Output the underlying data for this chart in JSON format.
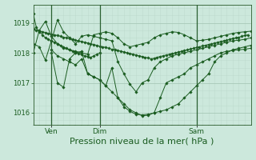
{
  "background_color": "#cce8dc",
  "grid_color_major": "#a8c8b8",
  "grid_color_minor": "#b8d8c8",
  "line_color": "#1a5c20",
  "xlabel": "Pression niveau de la mer( hPa )",
  "xlabel_fontsize": 8,
  "yticks": [
    1016,
    1017,
    1018,
    1019
  ],
  "ylim": [
    1015.6,
    1019.6
  ],
  "xtick_labels": [
    "Ven",
    "Dim",
    "Sam"
  ],
  "xtick_positions": [
    6,
    22,
    54
  ],
  "vline_positions": [
    6,
    22,
    54
  ],
  "xlim": [
    0,
    72
  ],
  "series": [
    {
      "x": [
        0,
        1,
        2,
        3,
        4,
        5,
        6,
        7,
        8,
        9,
        10,
        11,
        12,
        13,
        14,
        15,
        16,
        17,
        18,
        19,
        20,
        21,
        22
      ],
      "y": [
        1019.3,
        1018.85,
        1018.7,
        1018.6,
        1018.5,
        1018.45,
        1018.4,
        1018.35,
        1018.3,
        1018.25,
        1018.2,
        1018.15,
        1018.1,
        1018.05,
        1018.0,
        1017.98,
        1017.95,
        1017.9,
        1017.88,
        1017.85,
        1017.9,
        1017.95,
        1018.0
      ]
    },
    {
      "x": [
        0,
        1,
        2,
        3,
        4,
        5,
        6,
        7,
        8,
        9,
        10,
        11,
        12,
        13,
        14,
        15,
        16,
        17,
        18,
        19,
        20,
        21,
        22,
        23,
        24,
        25,
        26,
        27,
        28,
        29,
        30,
        31,
        32,
        33,
        34,
        35,
        36,
        37,
        38,
        39,
        40,
        41,
        42,
        43,
        44,
        45,
        46,
        47,
        48,
        49,
        50,
        51,
        52,
        53,
        54,
        55,
        56,
        57,
        58,
        59,
        60,
        61,
        62,
        63,
        64,
        65,
        66,
        67,
        68,
        69,
        70,
        71
      ],
      "y": [
        1018.8,
        1018.75,
        1018.72,
        1018.7,
        1018.68,
        1018.65,
        1018.62,
        1018.6,
        1018.58,
        1018.55,
        1018.52,
        1018.5,
        1018.48,
        1018.45,
        1018.42,
        1018.4,
        1018.38,
        1018.35,
        1018.33,
        1018.3,
        1018.28,
        1018.25,
        1018.22,
        1018.2,
        1018.18,
        1018.15,
        1018.12,
        1018.1,
        1018.08,
        1018.05,
        1018.03,
        1018.0,
        1017.98,
        1017.95,
        1017.93,
        1017.9,
        1017.88,
        1017.85,
        1017.83,
        1017.8,
        1017.82,
        1017.85,
        1017.88,
        1017.9,
        1017.93,
        1017.95,
        1017.98,
        1018.0,
        1018.03,
        1018.05,
        1018.08,
        1018.1,
        1018.13,
        1018.15,
        1018.18,
        1018.2,
        1018.23,
        1018.25,
        1018.28,
        1018.3,
        1018.33,
        1018.35,
        1018.38,
        1018.4,
        1018.42,
        1018.45,
        1018.48,
        1018.5,
        1018.52,
        1018.55,
        1018.58,
        1018.6
      ]
    },
    {
      "x": [
        0,
        2,
        4,
        6,
        8,
        10,
        12,
        14,
        16,
        18,
        20,
        22,
        24,
        26,
        28,
        30,
        32,
        34,
        36,
        38,
        40,
        42,
        44,
        46,
        48,
        50,
        52,
        54,
        56,
        58,
        60,
        62,
        64,
        66,
        68,
        70,
        72
      ],
      "y": [
        1018.0,
        1018.75,
        1019.05,
        1018.55,
        1018.3,
        1018.15,
        1018.1,
        1018.05,
        1018.0,
        1017.95,
        1018.6,
        1018.65,
        1018.7,
        1018.65,
        1018.5,
        1018.3,
        1018.2,
        1018.25,
        1018.3,
        1018.35,
        1018.5,
        1018.6,
        1018.65,
        1018.7,
        1018.68,
        1018.6,
        1018.5,
        1018.4,
        1018.42,
        1018.45,
        1018.5,
        1018.55,
        1018.6,
        1018.65,
        1018.68,
        1018.7,
        1018.72
      ]
    },
    {
      "x": [
        6,
        8,
        10,
        12,
        14,
        16,
        18,
        20,
        22,
        24,
        26,
        28,
        30,
        32,
        34,
        36,
        38,
        40,
        42,
        44,
        46,
        48,
        50,
        52,
        54,
        56,
        58,
        60,
        62,
        64,
        66,
        68,
        70,
        72
      ],
      "y": [
        1018.0,
        1017.0,
        1016.85,
        1017.8,
        1018.0,
        1018.05,
        1017.3,
        1017.2,
        1017.1,
        1016.9,
        1017.5,
        1016.5,
        1016.2,
        1016.05,
        1015.95,
        1015.93,
        1015.95,
        1016.0,
        1016.05,
        1016.1,
        1016.2,
        1016.3,
        1016.5,
        1016.7,
        1016.9,
        1017.1,
        1017.3,
        1017.7,
        1017.9,
        1018.0,
        1018.1,
        1018.15,
        1018.2,
        1018.25
      ]
    },
    {
      "x": [
        0,
        2,
        4,
        6,
        8,
        10,
        12,
        14,
        16,
        18,
        20,
        22,
        24,
        26,
        28,
        30,
        32,
        34,
        36,
        38,
        40,
        42,
        44,
        46,
        48,
        50,
        52,
        54,
        56,
        58,
        60,
        62,
        64,
        66,
        68,
        70,
        72
      ],
      "y": [
        1018.3,
        1018.2,
        1017.75,
        1018.4,
        1019.1,
        1018.7,
        1018.5,
        1018.3,
        1018.55,
        1018.6,
        1018.55,
        1018.5,
        1018.45,
        1018.4,
        1017.7,
        1017.3,
        1016.95,
        1016.7,
        1017.0,
        1017.1,
        1017.5,
        1017.7,
        1017.8,
        1017.9,
        1017.95,
        1018.0,
        1018.05,
        1018.1,
        1018.15,
        1018.2,
        1018.25,
        1018.3,
        1018.35,
        1018.4,
        1018.42,
        1018.45,
        1018.5
      ]
    },
    {
      "x": [
        6,
        8,
        10,
        12,
        14,
        16,
        18,
        20,
        22,
        24,
        26,
        28,
        30,
        32,
        34,
        36,
        38,
        40,
        42,
        44,
        46,
        48,
        50,
        52,
        54,
        56,
        58,
        60,
        62,
        64,
        66,
        68,
        70,
        72
      ],
      "y": [
        1018.1,
        1017.9,
        1017.8,
        1017.7,
        1017.6,
        1017.8,
        1017.3,
        1017.2,
        1017.1,
        1016.9,
        1016.7,
        1016.5,
        1016.3,
        1016.1,
        1016.0,
        1015.9,
        1015.92,
        1016.0,
        1016.5,
        1017.0,
        1017.1,
        1017.2,
        1017.3,
        1017.5,
        1017.6,
        1017.7,
        1017.8,
        1017.9,
        1018.0,
        1018.05,
        1018.08,
        1018.1,
        1018.12,
        1018.15
      ]
    }
  ]
}
